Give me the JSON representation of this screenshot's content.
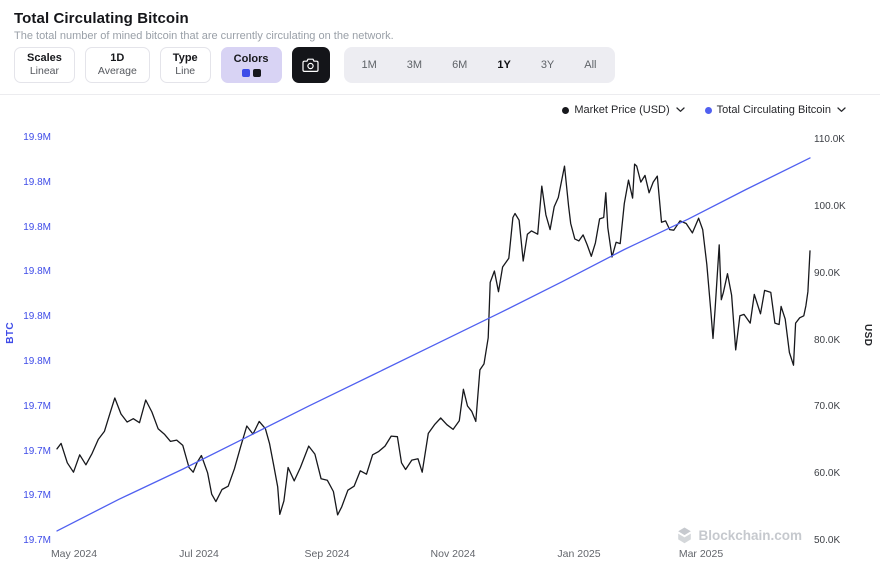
{
  "header": {
    "title": "Total Circulating Bitcoin",
    "subtitle": "The total number of mined bitcoin that are currently circulating on the network."
  },
  "toolbar": {
    "scales": {
      "label": "Scales",
      "value": "Linear"
    },
    "frequency": {
      "label": "1D",
      "value": "Average"
    },
    "type": {
      "label": "Type",
      "value": "Line"
    },
    "colors": {
      "label": "Colors",
      "swatches": [
        "#3d4ce8",
        "#17181c"
      ]
    },
    "ranges": [
      "1M",
      "3M",
      "6M",
      "1Y",
      "3Y",
      "All"
    ],
    "active_range": "1Y"
  },
  "legend": [
    {
      "label": "Market Price (USD)",
      "color": "#17181c"
    },
    {
      "label": "Total Circulating Bitcoin",
      "color": "#5060f0"
    }
  ],
  "axes": {
    "left_title": "BTC",
    "right_title": "USD"
  },
  "watermark": "Blockchain.com",
  "chart_data": {
    "type": "line",
    "title": "Total Circulating Bitcoin",
    "grid": false,
    "legend_position": "top-right",
    "x_range": [
      0,
      365
    ],
    "x_tick_days": [
      8,
      69,
      131,
      192,
      253,
      312
    ],
    "x_tick_labels": [
      "May 2024",
      "Jul 2024",
      "Sep 2024",
      "Nov 2024",
      "Jan 2025",
      "Mar 2025"
    ],
    "usd_ylim": [
      50000,
      110000
    ],
    "usd_tick_values": [
      110000,
      100000,
      90000,
      80000,
      70000,
      60000,
      50000
    ],
    "usd_tick_labels": [
      "110.0K",
      "100.0K",
      "90.0K",
      "80.0K",
      "70.0K",
      "60.0K",
      "50.0K"
    ],
    "btc_ylim_m": [
      19.683,
      19.862
    ],
    "btc_tick_labels": [
      "19.9M",
      "19.8M",
      "19.8M",
      "19.8M",
      "19.8M",
      "19.8M",
      "19.7M",
      "19.7M",
      "19.7M",
      "19.7M"
    ],
    "series": [
      {
        "name": "Market Price (USD)",
        "axis": "usd",
        "color": "#17181c",
        "points": [
          [
            0,
            63800
          ],
          [
            2,
            64600
          ],
          [
            5,
            61700
          ],
          [
            8,
            60300
          ],
          [
            11,
            62900
          ],
          [
            14,
            61400
          ],
          [
            17,
            63100
          ],
          [
            20,
            65200
          ],
          [
            23,
            66400
          ],
          [
            26,
            69400
          ],
          [
            28,
            71400
          ],
          [
            31,
            69000
          ],
          [
            34,
            67800
          ],
          [
            37,
            68300
          ],
          [
            40,
            67700
          ],
          [
            43,
            71100
          ],
          [
            46,
            69300
          ],
          [
            49,
            66800
          ],
          [
            52,
            66000
          ],
          [
            55,
            64900
          ],
          [
            58,
            65100
          ],
          [
            61,
            64300
          ],
          [
            64,
            61000
          ],
          [
            66,
            60300
          ],
          [
            68,
            61800
          ],
          [
            70,
            62800
          ],
          [
            73,
            60200
          ],
          [
            75,
            57000
          ],
          [
            77,
            55900
          ],
          [
            80,
            57700
          ],
          [
            83,
            58200
          ],
          [
            86,
            60800
          ],
          [
            89,
            64100
          ],
          [
            92,
            67200
          ],
          [
            95,
            66000
          ],
          [
            98,
            67900
          ],
          [
            101,
            66800
          ],
          [
            103,
            64600
          ],
          [
            105,
            61400
          ],
          [
            107,
            58100
          ],
          [
            108,
            54000
          ],
          [
            110,
            56000
          ],
          [
            112,
            61000
          ],
          [
            115,
            59000
          ],
          [
            118,
            61000
          ],
          [
            122,
            64200
          ],
          [
            125,
            63000
          ],
          [
            128,
            59300
          ],
          [
            131,
            59100
          ],
          [
            134,
            57400
          ],
          [
            136,
            53900
          ],
          [
            138,
            55100
          ],
          [
            141,
            57600
          ],
          [
            144,
            58200
          ],
          [
            147,
            60500
          ],
          [
            150,
            60000
          ],
          [
            153,
            62900
          ],
          [
            156,
            63400
          ],
          [
            159,
            64200
          ],
          [
            162,
            65700
          ],
          [
            165,
            65600
          ],
          [
            167,
            61700
          ],
          [
            169,
            60700
          ],
          [
            172,
            62100
          ],
          [
            175,
            62300
          ],
          [
            177,
            60300
          ],
          [
            180,
            66100
          ],
          [
            183,
            67400
          ],
          [
            186,
            68400
          ],
          [
            189,
            67400
          ],
          [
            192,
            66700
          ],
          [
            195,
            68000
          ],
          [
            197,
            72700
          ],
          [
            199,
            70200
          ],
          [
            201,
            69400
          ],
          [
            203,
            67900
          ],
          [
            205,
            75600
          ],
          [
            207,
            76500
          ],
          [
            209,
            80400
          ],
          [
            210,
            88700
          ],
          [
            212,
            90400
          ],
          [
            214,
            87300
          ],
          [
            216,
            91000
          ],
          [
            219,
            92300
          ],
          [
            221,
            98400
          ],
          [
            222,
            99000
          ],
          [
            224,
            98000
          ],
          [
            226,
            91900
          ],
          [
            228,
            95900
          ],
          [
            230,
            96400
          ],
          [
            233,
            95900
          ],
          [
            235,
            103100
          ],
          [
            237,
            98800
          ],
          [
            239,
            96600
          ],
          [
            241,
            100000
          ],
          [
            243,
            101400
          ],
          [
            245,
            104500
          ],
          [
            246,
            106100
          ],
          [
            248,
            100100
          ],
          [
            249,
            97500
          ],
          [
            251,
            95200
          ],
          [
            253,
            94900
          ],
          [
            255,
            95800
          ],
          [
            257,
            94300
          ],
          [
            259,
            92600
          ],
          [
            261,
            94600
          ],
          [
            263,
            98200
          ],
          [
            265,
            98400
          ],
          [
            266,
            102100
          ],
          [
            267,
            96900
          ],
          [
            269,
            92500
          ],
          [
            271,
            94700
          ],
          [
            273,
            94500
          ],
          [
            275,
            100500
          ],
          [
            277,
            104000
          ],
          [
            279,
            101300
          ],
          [
            280,
            106400
          ],
          [
            281,
            106100
          ],
          [
            283,
            103700
          ],
          [
            285,
            104700
          ],
          [
            287,
            102100
          ],
          [
            289,
            103700
          ],
          [
            291,
            104600
          ],
          [
            293,
            97700
          ],
          [
            295,
            97900
          ],
          [
            297,
            96600
          ],
          [
            299,
            96500
          ],
          [
            302,
            97900
          ],
          [
            305,
            97500
          ],
          [
            308,
            96100
          ],
          [
            311,
            98300
          ],
          [
            313,
            96600
          ],
          [
            315,
            91400
          ],
          [
            317,
            84100
          ],
          [
            318,
            80300
          ],
          [
            319,
            84700
          ],
          [
            321,
            94300
          ],
          [
            322,
            86100
          ],
          [
            323,
            87200
          ],
          [
            325,
            90000
          ],
          [
            327,
            86800
          ],
          [
            329,
            78600
          ],
          [
            331,
            83700
          ],
          [
            333,
            83900
          ],
          [
            336,
            82600
          ],
          [
            338,
            86900
          ],
          [
            341,
            84000
          ],
          [
            343,
            87500
          ],
          [
            346,
            87200
          ],
          [
            348,
            82600
          ],
          [
            350,
            82400
          ],
          [
            351,
            85100
          ],
          [
            353,
            83200
          ],
          [
            355,
            78200
          ],
          [
            357,
            76300
          ],
          [
            358,
            82600
          ],
          [
            360,
            83400
          ],
          [
            362,
            83700
          ],
          [
            363,
            85200
          ],
          [
            364,
            87300
          ],
          [
            365,
            93400
          ]
        ]
      },
      {
        "name": "Total Circulating Bitcoin",
        "axis": "btc",
        "color": "#5060f0",
        "points": [
          [
            0,
            19.6875
          ],
          [
            30,
            19.7016
          ],
          [
            61,
            19.7151
          ],
          [
            91,
            19.7289
          ],
          [
            122,
            19.7432
          ],
          [
            153,
            19.7571
          ],
          [
            183,
            19.7706
          ],
          [
            214,
            19.7845
          ],
          [
            245,
            19.7988
          ],
          [
            275,
            19.8131
          ],
          [
            306,
            19.8267
          ],
          [
            334,
            19.8399
          ],
          [
            365,
            19.854
          ]
        ]
      }
    ]
  }
}
